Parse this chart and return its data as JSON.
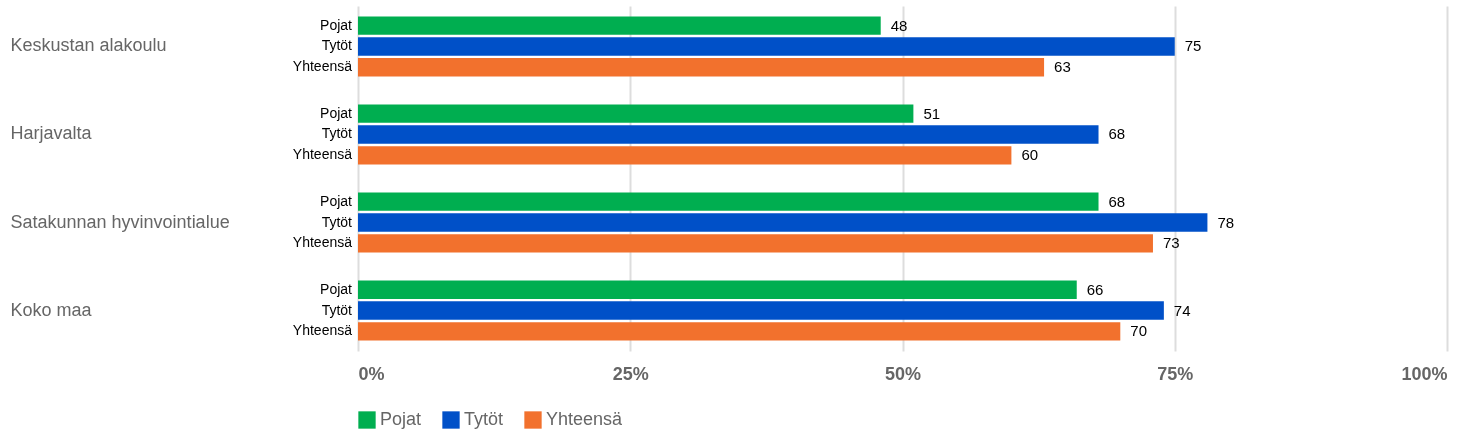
{
  "chart_data": {
    "type": "bar",
    "orientation": "horizontal",
    "categories": [
      "Keskustan alakoulu",
      "Harjavalta",
      "Satakunnan hyvinvointialue",
      "Koko maa"
    ],
    "series": [
      {
        "name": "Pojat",
        "color": "#00ae50",
        "values": [
          48,
          51,
          68,
          66
        ]
      },
      {
        "name": "Tytöt",
        "color": "#0050c8",
        "values": [
          75,
          68,
          78,
          74
        ]
      },
      {
        "name": "Yhteensä",
        "color": "#f2712d",
        "values": [
          63,
          60,
          73,
          70
        ]
      }
    ],
    "xlim": [
      0,
      100
    ],
    "xticks": [
      {
        "value": 0,
        "label": "0%"
      },
      {
        "value": 25,
        "label": "25%"
      },
      {
        "value": 50,
        "label": "50%"
      },
      {
        "value": 75,
        "label": "75%"
      },
      {
        "value": 100,
        "label": "100%"
      }
    ],
    "grid": "x",
    "legend": "bottom",
    "data_labels": true
  }
}
